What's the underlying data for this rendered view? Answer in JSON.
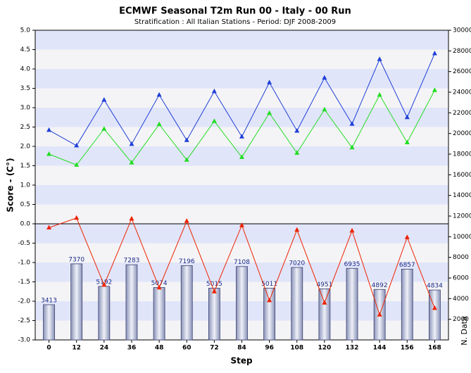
{
  "chart_data": {
    "type": "combo",
    "title": "ECMWF Seasonal T2m Run 00 - Italy - 00 Run",
    "subtitle": "Stratification : All Italian Stations - Period: DJF 2008-2009",
    "x_label": "Step",
    "y_label": "Score - (C°)",
    "y2_label": "N. Data",
    "categories": [
      "0",
      "12",
      "24",
      "36",
      "48",
      "60",
      "72",
      "84",
      "96",
      "108",
      "120",
      "132",
      "144",
      "156",
      "168"
    ],
    "ylim": [
      -3,
      5
    ],
    "yticks": [
      {
        "value": -3,
        "label": "-3.0"
      },
      -2.5,
      {
        "value": -2,
        "label": "-2.0"
      },
      -1.5,
      {
        "value": -1,
        "label": "-1.0"
      },
      -0.5,
      {
        "value": 0,
        "label": "0.0"
      },
      0.5,
      {
        "value": 1,
        "label": "1.0"
      },
      1.5,
      {
        "value": 2,
        "label": "2.0"
      },
      2.5,
      {
        "value": 3,
        "label": "3.0"
      },
      3.5,
      {
        "value": 4,
        "label": "4.0"
      },
      4.5,
      {
        "value": 5,
        "label": "5.0"
      }
    ],
    "y2lim": [
      0,
      30000
    ],
    "y2ticks": [
      2000,
      4000,
      6000,
      8000,
      10000,
      12000,
      14000,
      16000,
      18000,
      20000,
      22000,
      24000,
      26000,
      28000,
      30000
    ],
    "grid": true,
    "series": [
      {
        "type": "bar",
        "axis": "y2",
        "color": "#c8cde0",
        "values": [
          3413,
          7370,
          5192,
          7283,
          5074,
          7196,
          5015,
          7108,
          5011,
          7020,
          4951,
          6935,
          4892,
          6857,
          4834
        ]
      },
      {
        "type": "line",
        "color": "#1f3fd8",
        "values": [
          2.42,
          2.02,
          3.2,
          2.06,
          3.33,
          2.16,
          3.42,
          2.25,
          3.65,
          2.4,
          3.77,
          2.58,
          4.25,
          2.75,
          4.4
        ]
      },
      {
        "type": "line",
        "color": "#22dd22",
        "values": [
          1.8,
          1.52,
          2.45,
          1.58,
          2.57,
          1.65,
          2.65,
          1.72,
          2.86,
          1.83,
          2.95,
          1.97,
          3.33,
          2.1,
          3.45
        ]
      },
      {
        "type": "line",
        "color": "#ee2200",
        "values": [
          -0.1,
          0.15,
          -1.58,
          0.13,
          -1.65,
          0.07,
          -1.75,
          -0.04,
          -1.98,
          -0.16,
          -2.04,
          -0.18,
          -2.35,
          -0.35,
          -2.18
        ]
      }
    ]
  }
}
